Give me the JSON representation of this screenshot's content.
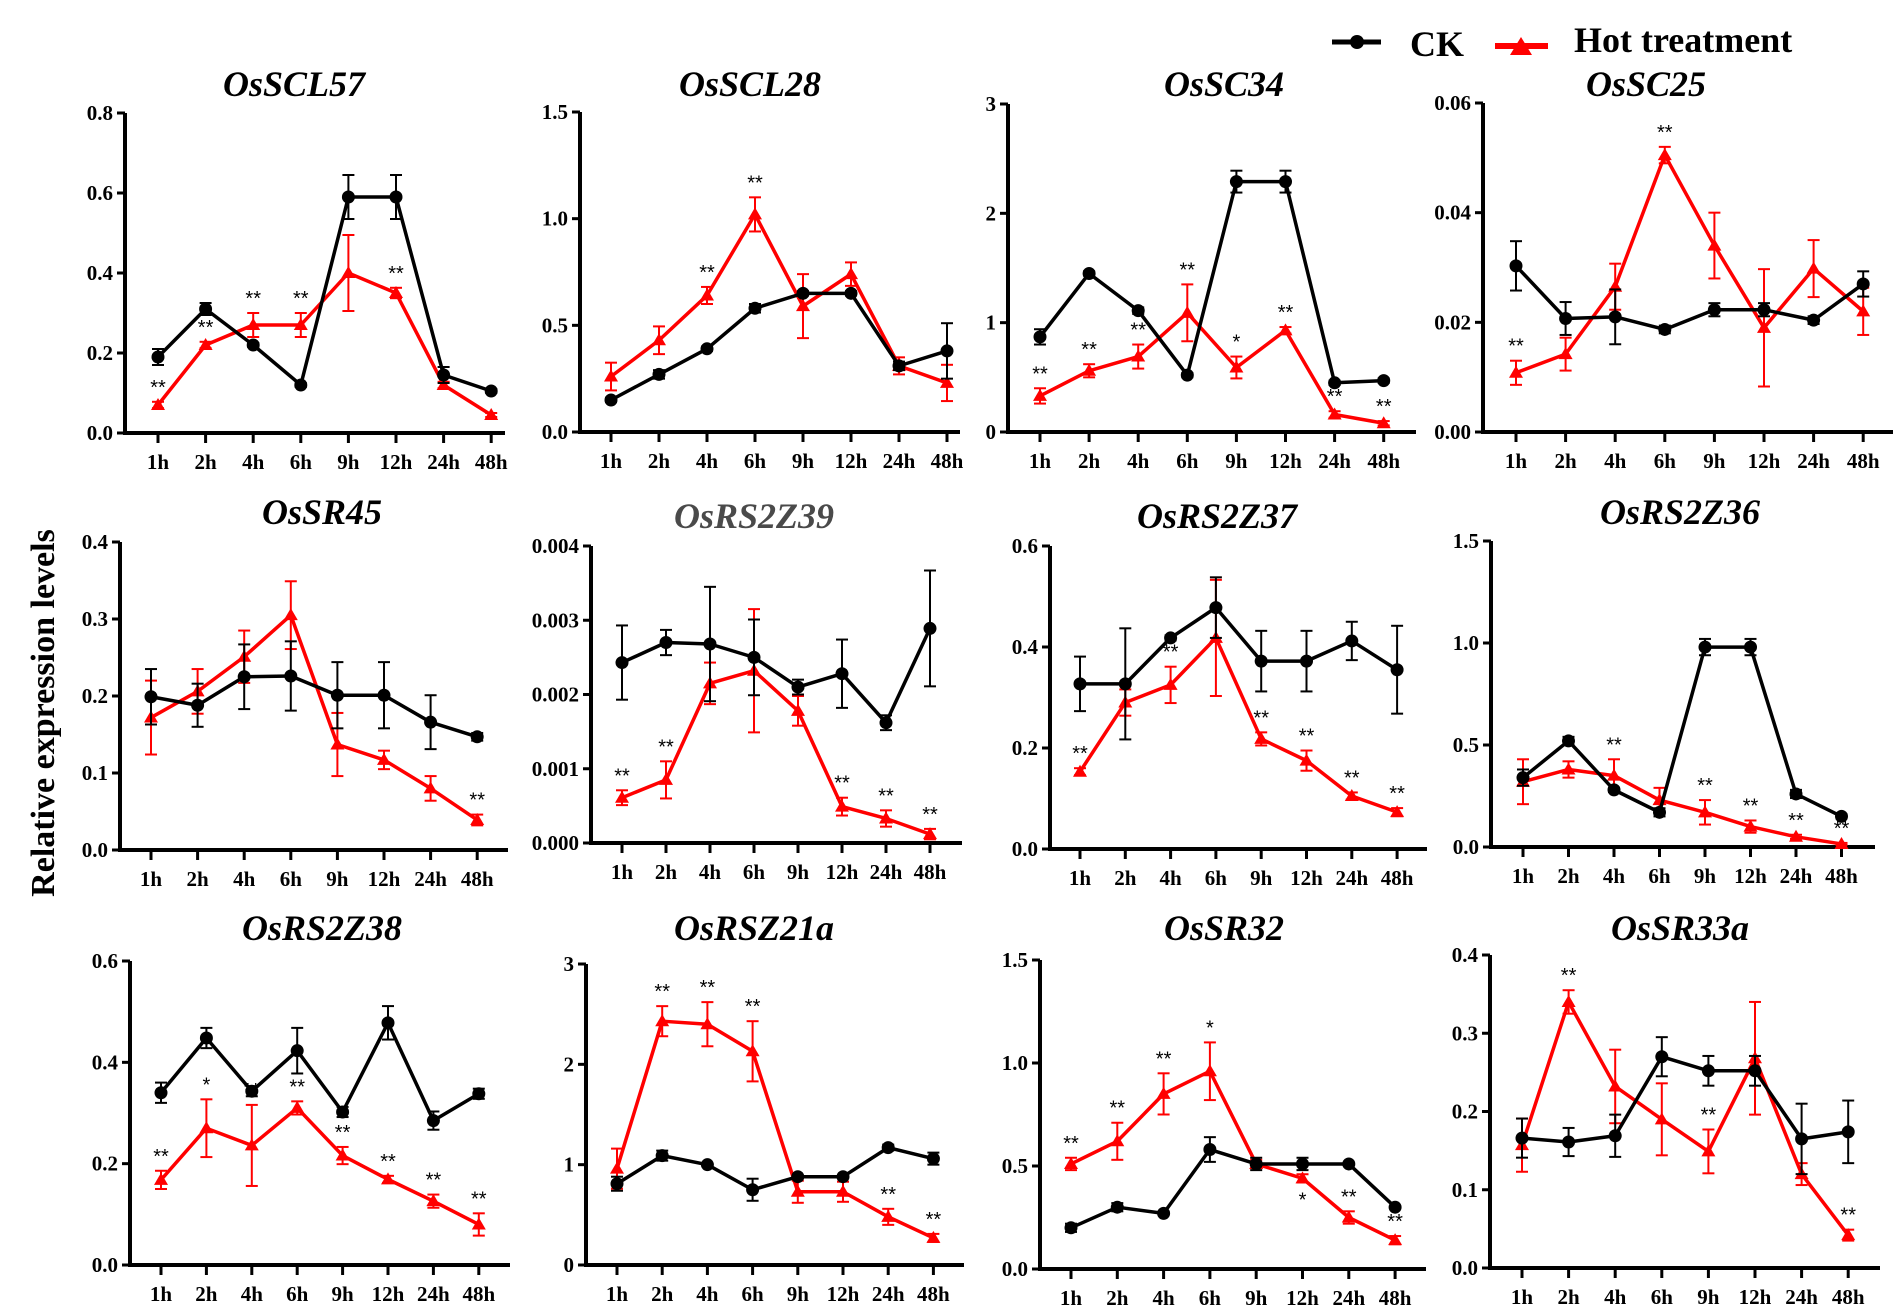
{
  "legend": {
    "ck_label": "CK",
    "hot_label": "Hot treatment",
    "ck_color": "#000000",
    "hot_color": "#ff0000",
    "position": "top-right"
  },
  "ylabel": "Relative expression levels",
  "chart_data": [
    {
      "type": "line",
      "title": "OsSCL57",
      "title_color": "#000000",
      "categories": [
        "1h",
        "2h",
        "4h",
        "6h",
        "9h",
        "12h",
        "24h",
        "48h"
      ],
      "ylim": [
        0,
        0.8
      ],
      "yticks": [
        "0.0",
        "0.2",
        "0.4",
        "0.6",
        "0.8"
      ],
      "ytick_values": [
        0,
        0.2,
        0.4,
        0.6,
        0.8
      ],
      "series": [
        {
          "name": "CK",
          "values": [
            0.19,
            0.31,
            0.22,
            0.12,
            0.59,
            0.59,
            0.145,
            0.105
          ],
          "errors": [
            0.02,
            0.015,
            0.005,
            0.005,
            0.055,
            0.055,
            0.02,
            0.005
          ]
        },
        {
          "name": "Hot treatment",
          "values": [
            0.07,
            0.22,
            0.27,
            0.27,
            0.4,
            0.35,
            0.12,
            0.045
          ],
          "errors": [
            0.008,
            0.008,
            0.03,
            0.03,
            0.095,
            0.013,
            0.008,
            0.005
          ]
        }
      ],
      "significance": [
        "**",
        "**",
        "**",
        "**",
        "",
        "**",
        "",
        ""
      ]
    },
    {
      "type": "line",
      "title": "OsSCL28",
      "title_color": "#000000",
      "categories": [
        "1h",
        "2h",
        "4h",
        "6h",
        "9h",
        "12h",
        "24h",
        "48h"
      ],
      "ylim": [
        0,
        1.5
      ],
      "yticks": [
        "0.0",
        "0.5",
        "1.0",
        "1.5"
      ],
      "ytick_values": [
        0,
        0.5,
        1.0,
        1.5
      ],
      "series": [
        {
          "name": "CK",
          "values": [
            0.15,
            0.27,
            0.39,
            0.58,
            0.65,
            0.65,
            0.31,
            0.38
          ],
          "errors": [
            0.01,
            0.02,
            0.01,
            0.02,
            0.01,
            0.01,
            0.02,
            0.13
          ]
        },
        {
          "name": "Hot treatment",
          "values": [
            0.26,
            0.43,
            0.64,
            1.02,
            0.59,
            0.74,
            0.31,
            0.23
          ],
          "errors": [
            0.065,
            0.065,
            0.04,
            0.08,
            0.15,
            0.055,
            0.04,
            0.085
          ]
        }
      ],
      "significance": [
        "",
        "",
        "**",
        "**",
        "",
        "",
        "",
        ""
      ]
    },
    {
      "type": "line",
      "title": "OsSC34",
      "title_color": "#000000",
      "categories": [
        "1h",
        "2h",
        "4h",
        "6h",
        "9h",
        "12h",
        "24h",
        "48h"
      ],
      "ylim": [
        0,
        3
      ],
      "yticks": [
        "0",
        "1",
        "2",
        "3"
      ],
      "ytick_values": [
        0,
        1,
        2,
        3
      ],
      "series": [
        {
          "name": "CK",
          "values": [
            0.87,
            1.45,
            1.11,
            0.52,
            2.29,
            2.29,
            0.45,
            0.47
          ],
          "errors": [
            0.07,
            0.02,
            0.03,
            0.02,
            0.1,
            0.1,
            0.02,
            0.02
          ]
        },
        {
          "name": "Hot treatment",
          "values": [
            0.33,
            0.56,
            0.69,
            1.09,
            0.59,
            0.93,
            0.16,
            0.08
          ],
          "errors": [
            0.07,
            0.06,
            0.11,
            0.26,
            0.1,
            0.03,
            0.03,
            0.02
          ]
        }
      ],
      "significance": [
        "**",
        "**",
        "**",
        "**",
        "*",
        "**",
        "**",
        "**"
      ]
    },
    {
      "type": "line",
      "title": "OsSC25",
      "title_color": "#000000",
      "categories": [
        "1h",
        "2h",
        "4h",
        "6h",
        "9h",
        "12h",
        "24h",
        "48h"
      ],
      "ylim": [
        0,
        0.06
      ],
      "yticks": [
        "0.00",
        "0.02",
        "0.04",
        "0.06"
      ],
      "ytick_values": [
        0,
        0.02,
        0.04,
        0.06
      ],
      "series": [
        {
          "name": "CK",
          "values": [
            0.0303,
            0.0207,
            0.021,
            0.0187,
            0.0223,
            0.0223,
            0.0204,
            0.027
          ],
          "errors": [
            0.0045,
            0.003,
            0.005,
            0.0007,
            0.0012,
            0.0012,
            0.0007,
            0.0023
          ]
        },
        {
          "name": "Hot treatment",
          "values": [
            0.0108,
            0.0142,
            0.0265,
            0.0505,
            0.034,
            0.019,
            0.0298,
            0.022
          ],
          "errors": [
            0.0022,
            0.003,
            0.0042,
            0.0015,
            0.006,
            0.0107,
            0.0052,
            0.0043
          ]
        }
      ],
      "significance": [
        "**",
        "",
        "",
        "**",
        "",
        "",
        "",
        ""
      ]
    },
    {
      "type": "line",
      "title": "OsSR45",
      "title_color": "#000000",
      "categories": [
        "1h",
        "2h",
        "4h",
        "6h",
        "9h",
        "12h",
        "24h",
        "48h"
      ],
      "ylim": [
        0,
        0.4
      ],
      "yticks": [
        "0.0",
        "0.1",
        "0.2",
        "0.3",
        "0.4"
      ],
      "ytick_values": [
        0,
        0.1,
        0.2,
        0.3,
        0.4
      ],
      "series": [
        {
          "name": "CK",
          "values": [
            0.199,
            0.188,
            0.225,
            0.226,
            0.201,
            0.201,
            0.166,
            0.147
          ],
          "errors": [
            0.036,
            0.028,
            0.042,
            0.045,
            0.043,
            0.043,
            0.035,
            0.005
          ]
        },
        {
          "name": "Hot treatment",
          "values": [
            0.172,
            0.206,
            0.251,
            0.305,
            0.137,
            0.117,
            0.08,
            0.039
          ],
          "errors": [
            0.048,
            0.029,
            0.034,
            0.044,
            0.041,
            0.012,
            0.016,
            0.007
          ]
        }
      ],
      "significance": [
        "",
        "",
        "",
        "",
        "",
        "",
        "",
        "**"
      ]
    },
    {
      "type": "line",
      "title": "OsRS2Z39",
      "title_color": "#4a4a4a",
      "categories": [
        "1h",
        "2h",
        "4h",
        "6h",
        "9h",
        "12h",
        "24h",
        "48h"
      ],
      "ylim": [
        0,
        0.004
      ],
      "yticks": [
        "0.000",
        "0.001",
        "0.002",
        "0.003",
        "0.004"
      ],
      "ytick_values": [
        0,
        0.001,
        0.002,
        0.003,
        0.004
      ],
      "series": [
        {
          "name": "CK",
          "values": [
            0.00243,
            0.0027,
            0.00268,
            0.0025,
            0.0021,
            0.00228,
            0.00162,
            0.00289
          ],
          "errors": [
            0.0005,
            0.00017,
            0.00077,
            0.00051,
            0.0001,
            0.00046,
            0.0001,
            0.00078
          ]
        },
        {
          "name": "Hot treatment",
          "values": [
            0.00061,
            0.00085,
            0.00215,
            0.00232,
            0.00178,
            0.00049,
            0.00033,
            0.00012
          ],
          "errors": [
            0.0001,
            0.00025,
            0.00028,
            0.00083,
            0.0002,
            0.00012,
            0.00011,
            7e-05
          ]
        }
      ],
      "significance": [
        "**",
        "**",
        "",
        "",
        "",
        "**",
        "**",
        "**"
      ]
    },
    {
      "type": "line",
      "title": "OsRS2Z37",
      "title_color": "#000000",
      "categories": [
        "1h",
        "2h",
        "4h",
        "6h",
        "9h",
        "12h",
        "24h",
        "48h"
      ],
      "ylim": [
        0,
        0.6
      ],
      "yticks": [
        "0.0",
        "0.2",
        "0.4",
        "0.6"
      ],
      "ytick_values": [
        0,
        0.2,
        0.4,
        0.6
      ],
      "series": [
        {
          "name": "CK",
          "values": [
            0.327,
            0.327,
            0.418,
            0.478,
            0.372,
            0.372,
            0.412,
            0.355
          ],
          "errors": [
            0.054,
            0.11,
            0.005,
            0.06,
            0.06,
            0.06,
            0.038,
            0.087
          ]
        },
        {
          "name": "Hot treatment",
          "values": [
            0.153,
            0.29,
            0.325,
            0.418,
            0.218,
            0.175,
            0.105,
            0.073
          ],
          "errors": [
            0.007,
            0.026,
            0.036,
            0.115,
            0.013,
            0.02,
            0.007,
            0.008
          ]
        }
      ],
      "significance": [
        "**",
        "",
        "**",
        "",
        "**",
        "**",
        "**",
        "**"
      ]
    },
    {
      "type": "line",
      "title": "OsRS2Z36",
      "title_color": "#000000",
      "categories": [
        "1h",
        "2h",
        "4h",
        "6h",
        "9h",
        "12h",
        "24h",
        "48h"
      ],
      "ylim": [
        0,
        1.5
      ],
      "yticks": [
        "0.0",
        "0.5",
        "1.0",
        "1.5"
      ],
      "ytick_values": [
        0,
        0.5,
        1.0,
        1.5
      ],
      "series": [
        {
          "name": "CK",
          "values": [
            0.34,
            0.52,
            0.28,
            0.17,
            0.98,
            0.98,
            0.26,
            0.15
          ],
          "errors": [
            0.04,
            0.02,
            0.01,
            0.02,
            0.04,
            0.04,
            0.02,
            0.01
          ]
        },
        {
          "name": "Hot treatment",
          "values": [
            0.32,
            0.38,
            0.35,
            0.23,
            0.17,
            0.1,
            0.05,
            0.015
          ],
          "errors": [
            0.11,
            0.04,
            0.08,
            0.06,
            0.06,
            0.03,
            0.01,
            0.005
          ]
        }
      ],
      "significance": [
        "",
        "",
        "**",
        "",
        "**",
        "**",
        "**",
        "**"
      ]
    },
    {
      "type": "line",
      "title": "OsRS2Z38",
      "title_color": "#000000",
      "categories": [
        "1h",
        "2h",
        "4h",
        "6h",
        "9h",
        "12h",
        "24h",
        "48h"
      ],
      "ylim": [
        0,
        0.6
      ],
      "yticks": [
        "0.0",
        "0.2",
        "0.4",
        "0.6"
      ],
      "ytick_values": [
        0,
        0.2,
        0.4,
        0.6
      ],
      "series": [
        {
          "name": "CK",
          "values": [
            0.34,
            0.448,
            0.343,
            0.423,
            0.302,
            0.478,
            0.285,
            0.338
          ],
          "errors": [
            0.02,
            0.02,
            0.01,
            0.045,
            0.01,
            0.033,
            0.018,
            0.01
          ]
        },
        {
          "name": "Hot treatment",
          "values": [
            0.168,
            0.27,
            0.236,
            0.31,
            0.216,
            0.169,
            0.126,
            0.08
          ],
          "errors": [
            0.018,
            0.057,
            0.08,
            0.013,
            0.017,
            0.007,
            0.013,
            0.022
          ]
        }
      ],
      "significance": [
        "**",
        "*",
        "**",
        "**",
        "**",
        "**",
        "**",
        "**"
      ]
    },
    {
      "type": "line",
      "title": "OsRSZ21a",
      "title_color": "#000000",
      "categories": [
        "1h",
        "2h",
        "4h",
        "6h",
        "9h",
        "12h",
        "24h",
        "48h"
      ],
      "ylim": [
        0,
        3
      ],
      "yticks": [
        "0",
        "1",
        "2",
        "3"
      ],
      "ytick_values": [
        0,
        1,
        2,
        3
      ],
      "series": [
        {
          "name": "CK",
          "values": [
            0.81,
            1.09,
            1.0,
            0.75,
            0.88,
            0.88,
            1.17,
            1.06
          ],
          "errors": [
            0.07,
            0.05,
            0.01,
            0.11,
            0.01,
            0.01,
            0.03,
            0.06
          ]
        },
        {
          "name": "Hot treatment",
          "values": [
            0.96,
            2.43,
            2.4,
            2.13,
            0.73,
            0.73,
            0.48,
            0.27
          ],
          "errors": [
            0.2,
            0.15,
            0.22,
            0.3,
            0.11,
            0.1,
            0.08,
            0.04
          ]
        }
      ],
      "significance": [
        "",
        "**",
        "**",
        "**",
        "",
        "",
        "**",
        "**"
      ]
    },
    {
      "type": "line",
      "title": "OsSR32",
      "title_color": "#000000",
      "categories": [
        "1h",
        "2h",
        "4h",
        "6h",
        "9h",
        "12h",
        "24h",
        "48h"
      ],
      "ylim": [
        0,
        1.5
      ],
      "yticks": [
        "0.0",
        "0.5",
        "1.0",
        "1.5"
      ],
      "ytick_values": [
        0,
        0.5,
        1.0,
        1.5
      ],
      "series": [
        {
          "name": "CK",
          "values": [
            0.2,
            0.3,
            0.27,
            0.58,
            0.51,
            0.51,
            0.51,
            0.3
          ],
          "errors": [
            0.02,
            0.02,
            0.005,
            0.06,
            0.03,
            0.03,
            0.005,
            0.005
          ]
        },
        {
          "name": "Hot treatment",
          "values": [
            0.51,
            0.62,
            0.85,
            0.96,
            0.51,
            0.44,
            0.25,
            0.14
          ],
          "errors": [
            0.03,
            0.09,
            0.1,
            0.14,
            0.02,
            0.02,
            0.03,
            0.02
          ]
        }
      ],
      "significance": [
        "**",
        "**",
        "**",
        "*",
        "",
        "*",
        "**",
        "**"
      ]
    },
    {
      "type": "line",
      "title": "OsSR33a",
      "title_color": "#000000",
      "categories": [
        "1h",
        "2h",
        "4h",
        "6h",
        "9h",
        "12h",
        "24h",
        "48h"
      ],
      "ylim": [
        0,
        0.4
      ],
      "yticks": [
        "0.0",
        "0.1",
        "0.2",
        "0.3",
        "0.4"
      ],
      "ytick_values": [
        0,
        0.1,
        0.2,
        0.3,
        0.4
      ],
      "series": [
        {
          "name": "CK",
          "values": [
            0.166,
            0.161,
            0.169,
            0.27,
            0.252,
            0.252,
            0.165,
            0.174
          ],
          "errors": [
            0.025,
            0.018,
            0.027,
            0.025,
            0.019,
            0.019,
            0.045,
            0.04
          ]
        },
        {
          "name": "Hot treatment",
          "values": [
            0.157,
            0.34,
            0.232,
            0.19,
            0.149,
            0.268,
            0.12,
            0.042
          ],
          "errors": [
            0.034,
            0.015,
            0.047,
            0.046,
            0.028,
            0.072,
            0.014,
            0.007
          ]
        }
      ],
      "significance": [
        "",
        "**",
        "",
        "",
        "**",
        "",
        "",
        "**"
      ]
    }
  ]
}
